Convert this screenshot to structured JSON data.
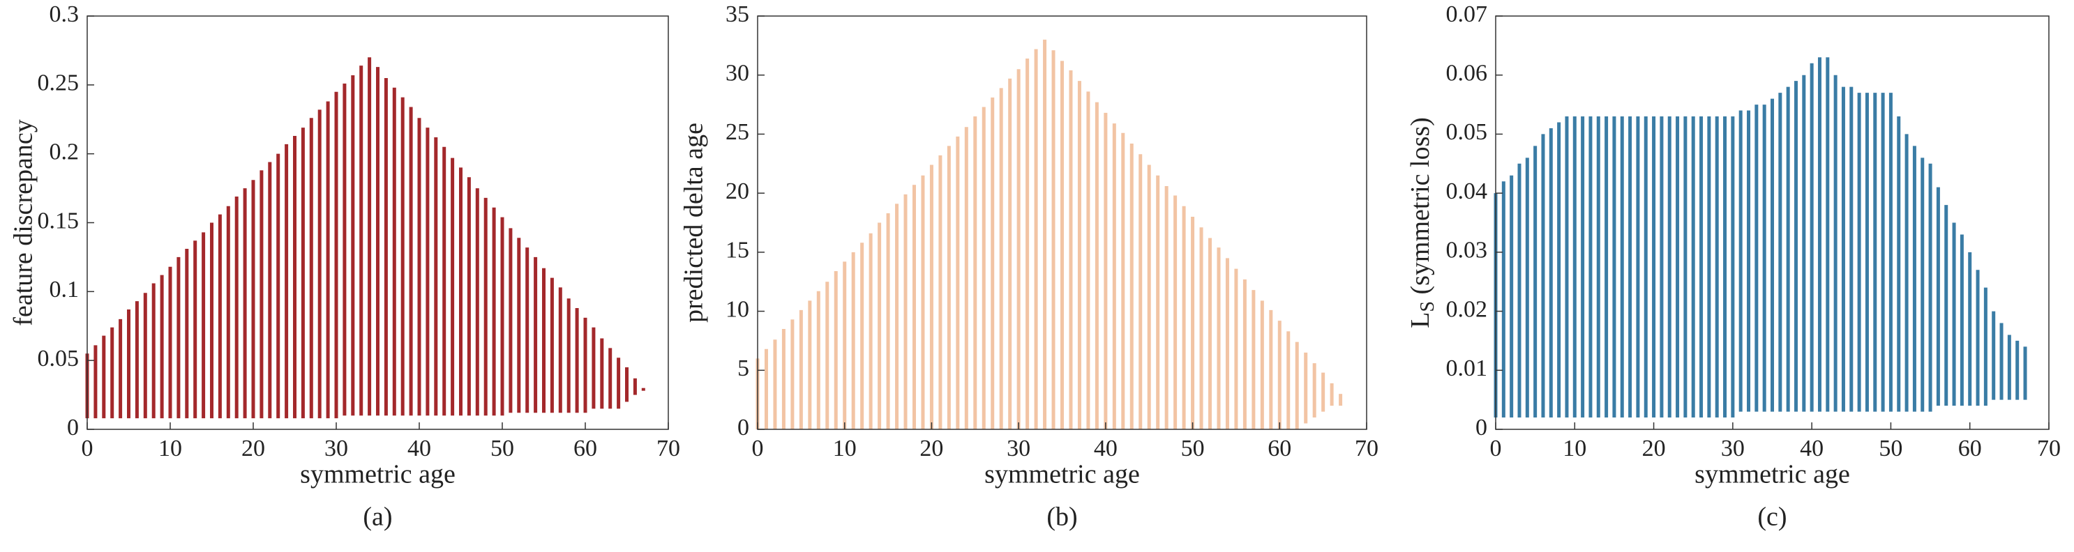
{
  "chart_data": [
    {
      "type": "range",
      "caption": "(a)",
      "xlabel": "symmetric age",
      "ylabel": "feature discrepancy",
      "color": "#a3282b",
      "xlim": [
        0,
        70
      ],
      "xticks": [
        0,
        10,
        20,
        30,
        40,
        50,
        60,
        70
      ],
      "ylim": [
        0,
        0.3
      ],
      "yticks": [
        0,
        0.05,
        0.1,
        0.15,
        0.2,
        0.25,
        0.3
      ],
      "x": [
        0,
        1,
        2,
        3,
        4,
        5,
        6,
        7,
        8,
        9,
        10,
        11,
        12,
        13,
        14,
        15,
        16,
        17,
        18,
        19,
        20,
        21,
        22,
        23,
        24,
        25,
        26,
        27,
        28,
        29,
        30,
        31,
        32,
        33,
        34,
        35,
        36,
        37,
        38,
        39,
        40,
        41,
        42,
        43,
        44,
        45,
        46,
        47,
        48,
        49,
        50,
        51,
        52,
        53,
        54,
        55,
        56,
        57,
        58,
        59,
        60,
        61,
        62,
        63,
        64,
        65,
        66,
        67
      ],
      "low": [
        0.008,
        0.008,
        0.008,
        0.008,
        0.008,
        0.008,
        0.008,
        0.008,
        0.008,
        0.008,
        0.008,
        0.008,
        0.008,
        0.008,
        0.008,
        0.008,
        0.008,
        0.008,
        0.008,
        0.008,
        0.008,
        0.008,
        0.008,
        0.008,
        0.008,
        0.008,
        0.008,
        0.008,
        0.008,
        0.008,
        0.008,
        0.01,
        0.01,
        0.01,
        0.01,
        0.01,
        0.01,
        0.01,
        0.01,
        0.01,
        0.01,
        0.01,
        0.01,
        0.01,
        0.01,
        0.01,
        0.01,
        0.01,
        0.01,
        0.01,
        0.01,
        0.012,
        0.012,
        0.012,
        0.012,
        0.012,
        0.012,
        0.012,
        0.012,
        0.012,
        0.012,
        0.015,
        0.015,
        0.015,
        0.015,
        0.02,
        0.025,
        0.028
      ],
      "high": [
        0.055,
        0.061,
        0.068,
        0.074,
        0.08,
        0.087,
        0.093,
        0.099,
        0.106,
        0.112,
        0.118,
        0.125,
        0.131,
        0.137,
        0.143,
        0.15,
        0.156,
        0.162,
        0.169,
        0.175,
        0.181,
        0.188,
        0.194,
        0.2,
        0.207,
        0.213,
        0.219,
        0.226,
        0.232,
        0.238,
        0.245,
        0.251,
        0.257,
        0.264,
        0.27,
        0.263,
        0.255,
        0.248,
        0.241,
        0.234,
        0.226,
        0.219,
        0.212,
        0.205,
        0.197,
        0.19,
        0.183,
        0.175,
        0.168,
        0.161,
        0.154,
        0.146,
        0.139,
        0.132,
        0.125,
        0.117,
        0.11,
        0.103,
        0.095,
        0.088,
        0.081,
        0.074,
        0.066,
        0.059,
        0.052,
        0.045,
        0.037,
        0.03
      ]
    },
    {
      "type": "range",
      "caption": "(b)",
      "xlabel": "symmetric age",
      "ylabel": "predicted delta age",
      "color": "#f2c4a4",
      "xlim": [
        0,
        70
      ],
      "xticks": [
        0,
        10,
        20,
        30,
        40,
        50,
        60,
        70
      ],
      "ylim": [
        0,
        35
      ],
      "yticks": [
        0,
        5,
        10,
        15,
        20,
        25,
        30,
        35
      ],
      "x": [
        0,
        1,
        2,
        3,
        4,
        5,
        6,
        7,
        8,
        9,
        10,
        11,
        12,
        13,
        14,
        15,
        16,
        17,
        18,
        19,
        20,
        21,
        22,
        23,
        24,
        25,
        26,
        27,
        28,
        29,
        30,
        31,
        32,
        33,
        34,
        35,
        36,
        37,
        38,
        39,
        40,
        41,
        42,
        43,
        44,
        45,
        46,
        47,
        48,
        49,
        50,
        51,
        52,
        53,
        54,
        55,
        56,
        57,
        58,
        59,
        60,
        61,
        62,
        63,
        64,
        65,
        66,
        67
      ],
      "low": [
        0,
        0,
        0,
        0,
        0,
        0,
        0,
        0,
        0,
        0,
        0,
        0,
        0,
        0,
        0,
        0,
        0,
        0,
        0,
        0,
        0,
        0,
        0,
        0,
        0,
        0,
        0,
        0,
        0,
        0,
        0,
        0,
        0,
        0,
        0,
        0,
        0,
        0,
        0,
        0,
        0,
        0,
        0,
        0,
        0,
        0,
        0,
        0,
        0,
        0,
        0,
        0,
        0,
        0,
        0,
        0,
        0,
        0,
        0,
        0,
        0,
        0,
        0,
        0.5,
        1,
        1.5,
        2,
        2
      ],
      "high": [
        6,
        6.8,
        7.6,
        8.5,
        9.3,
        10.1,
        10.9,
        11.7,
        12.5,
        13.4,
        14.2,
        15,
        15.8,
        16.6,
        17.5,
        18.3,
        19.1,
        19.9,
        20.7,
        21.5,
        22.4,
        23.2,
        24,
        24.8,
        25.6,
        26.5,
        27.3,
        28.1,
        28.9,
        29.7,
        30.5,
        31.4,
        32.2,
        33,
        32.1,
        31.2,
        30.4,
        29.5,
        28.6,
        27.7,
        26.8,
        25.9,
        25.1,
        24.2,
        23.3,
        22.4,
        21.5,
        20.6,
        19.8,
        18.9,
        18,
        17.1,
        16.2,
        15.4,
        14.5,
        13.6,
        12.7,
        11.8,
        10.9,
        10.1,
        9.2,
        8.3,
        7.4,
        6.5,
        5.6,
        4.8,
        3.9,
        3
      ]
    },
    {
      "type": "range",
      "caption": "(c)",
      "xlabel": "symmetric age",
      "ylabel": {
        "main": "L",
        "sub": "S",
        "rest": " (symmetric loss)"
      },
      "color": "#3a7ca5",
      "xlim": [
        0,
        70
      ],
      "xticks": [
        0,
        10,
        20,
        30,
        40,
        50,
        60,
        70
      ],
      "ylim": [
        0,
        0.07
      ],
      "yticks": [
        0,
        0.01,
        0.02,
        0.03,
        0.04,
        0.05,
        0.06,
        0.07
      ],
      "x": [
        0,
        1,
        2,
        3,
        4,
        5,
        6,
        7,
        8,
        9,
        10,
        11,
        12,
        13,
        14,
        15,
        16,
        17,
        18,
        19,
        20,
        21,
        22,
        23,
        24,
        25,
        26,
        27,
        28,
        29,
        30,
        31,
        32,
        33,
        34,
        35,
        36,
        37,
        38,
        39,
        40,
        41,
        42,
        43,
        44,
        45,
        46,
        47,
        48,
        49,
        50,
        51,
        52,
        53,
        54,
        55,
        56,
        57,
        58,
        59,
        60,
        61,
        62,
        63,
        64,
        65,
        66,
        67
      ],
      "low": [
        0.002,
        0.002,
        0.002,
        0.002,
        0.002,
        0.002,
        0.002,
        0.002,
        0.002,
        0.002,
        0.002,
        0.002,
        0.002,
        0.002,
        0.002,
        0.002,
        0.002,
        0.002,
        0.002,
        0.002,
        0.002,
        0.002,
        0.002,
        0.002,
        0.002,
        0.002,
        0.002,
        0.002,
        0.002,
        0.002,
        0.002,
        0.003,
        0.003,
        0.003,
        0.003,
        0.003,
        0.003,
        0.003,
        0.003,
        0.003,
        0.003,
        0.003,
        0.003,
        0.003,
        0.003,
        0.003,
        0.003,
        0.003,
        0.003,
        0.003,
        0.003,
        0.003,
        0.003,
        0.003,
        0.003,
        0.003,
        0.004,
        0.004,
        0.004,
        0.004,
        0.004,
        0.004,
        0.004,
        0.005,
        0.005,
        0.005,
        0.005,
        0.005
      ],
      "high": [
        0.04,
        0.042,
        0.043,
        0.045,
        0.046,
        0.048,
        0.05,
        0.051,
        0.052,
        0.053,
        0.053,
        0.053,
        0.053,
        0.053,
        0.053,
        0.053,
        0.053,
        0.053,
        0.053,
        0.053,
        0.053,
        0.053,
        0.053,
        0.053,
        0.053,
        0.053,
        0.053,
        0.053,
        0.053,
        0.053,
        0.053,
        0.054,
        0.054,
        0.055,
        0.055,
        0.056,
        0.057,
        0.058,
        0.059,
        0.06,
        0.062,
        0.063,
        0.063,
        0.06,
        0.058,
        0.058,
        0.057,
        0.057,
        0.057,
        0.057,
        0.057,
        0.053,
        0.05,
        0.048,
        0.046,
        0.045,
        0.041,
        0.038,
        0.035,
        0.033,
        0.03,
        0.027,
        0.024,
        0.02,
        0.018,
        0.016,
        0.015,
        0.014
      ]
    }
  ]
}
